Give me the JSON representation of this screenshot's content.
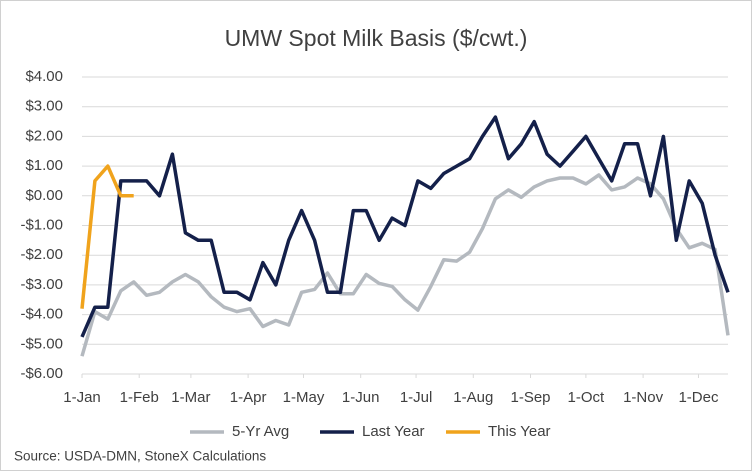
{
  "chart_data": {
    "type": "line",
    "title": "UMW Spot Milk Basis ($/cwt.)",
    "source": "Source: USDA-DMN, StoneX Calculations",
    "x": [
      0,
      7,
      14,
      21,
      28,
      35,
      42,
      49,
      56,
      63,
      70,
      77,
      84,
      91,
      98,
      105,
      112,
      119,
      126,
      133,
      140,
      147,
      154,
      161,
      168,
      175,
      182,
      189,
      196,
      203,
      210,
      217,
      224,
      231,
      238,
      245,
      252,
      259,
      266,
      273,
      280,
      287,
      294,
      301,
      308,
      315,
      322,
      329,
      336,
      343,
      350
    ],
    "xlim": [
      0,
      350
    ],
    "xticks": [
      {
        "value": 0,
        "label": "1-Jan"
      },
      {
        "value": 31,
        "label": "1-Feb"
      },
      {
        "value": 59,
        "label": "1-Mar"
      },
      {
        "value": 90,
        "label": "1-Apr"
      },
      {
        "value": 120,
        "label": "1-May"
      },
      {
        "value": 151,
        "label": "1-Jun"
      },
      {
        "value": 181,
        "label": "1-Jul"
      },
      {
        "value": 212,
        "label": "1-Aug"
      },
      {
        "value": 243,
        "label": "1-Sep"
      },
      {
        "value": 273,
        "label": "1-Oct"
      },
      {
        "value": 304,
        "label": "1-Nov"
      },
      {
        "value": 334,
        "label": "1-Dec"
      }
    ],
    "ylim": [
      -6,
      4
    ],
    "yticks": [
      {
        "value": 4,
        "label": "$4.00"
      },
      {
        "value": 3,
        "label": "$3.00"
      },
      {
        "value": 2,
        "label": "$2.00"
      },
      {
        "value": 1,
        "label": "$1.00"
      },
      {
        "value": 0,
        "label": "$0.00"
      },
      {
        "value": -1,
        "label": "-$1.00"
      },
      {
        "value": -2,
        "label": "-$2.00"
      },
      {
        "value": -3,
        "label": "-$3.00"
      },
      {
        "value": -4,
        "label": "-$4.00"
      },
      {
        "value": -5,
        "label": "-$5.00"
      },
      {
        "value": -6,
        "label": "-$6.00"
      }
    ],
    "grid": true,
    "legend": "bottom",
    "series": [
      {
        "name": "5-Yr Avg",
        "color": "#b4b9bf",
        "values": [
          -5.4,
          -3.9,
          -4.15,
          -3.2,
          -2.9,
          -3.35,
          -3.25,
          -2.9,
          -2.65,
          -2.9,
          -3.4,
          -3.75,
          -3.9,
          -3.8,
          -4.4,
          -4.2,
          -4.35,
          -3.25,
          -3.15,
          -2.6,
          -3.3,
          -3.3,
          -2.65,
          -2.95,
          -3.05,
          -3.5,
          -3.85,
          -3.05,
          -2.15,
          -2.2,
          -1.9,
          -1.1,
          -0.1,
          0.2,
          -0.05,
          0.3,
          0.5,
          0.6,
          0.6,
          0.4,
          0.7,
          0.2,
          0.3,
          0.6,
          0.4,
          -0.1,
          -1.1,
          -1.75,
          -1.6,
          -1.8,
          -4.7
        ]
      },
      {
        "name": "Last Year",
        "color": "#14204a",
        "values": [
          -4.75,
          -3.75,
          -3.75,
          0.5,
          0.5,
          0.5,
          0,
          1.4,
          -1.25,
          -1.5,
          -1.5,
          -3.25,
          -3.25,
          -3.5,
          -2.25,
          -3.0,
          -1.5,
          -0.5,
          -1.5,
          -3.25,
          -3.25,
          -0.5,
          -0.5,
          -1.5,
          -0.75,
          -1.0,
          0.5,
          0.25,
          0.75,
          1.0,
          1.25,
          2.0,
          2.65,
          1.25,
          1.75,
          2.5,
          1.4,
          1.0,
          1.5,
          2.0,
          1.25,
          0.5,
          1.75,
          1.75,
          0,
          2.0,
          -1.5,
          0.5,
          -0.25,
          -2.0,
          -3.25
        ]
      },
      {
        "name": "This Year",
        "color": "#f0a31c",
        "values": [
          -3.8,
          0.5,
          1.0,
          0,
          0,
          null,
          null,
          null,
          null,
          null,
          null,
          null,
          null,
          null,
          null,
          null,
          null,
          null,
          null,
          null,
          null,
          null,
          null,
          null,
          null,
          null,
          null,
          null,
          null,
          null,
          null,
          null,
          null,
          null,
          null,
          null,
          null,
          null,
          null,
          null,
          null,
          null,
          null,
          null,
          null,
          null,
          null,
          null,
          null,
          null,
          null
        ]
      }
    ]
  }
}
